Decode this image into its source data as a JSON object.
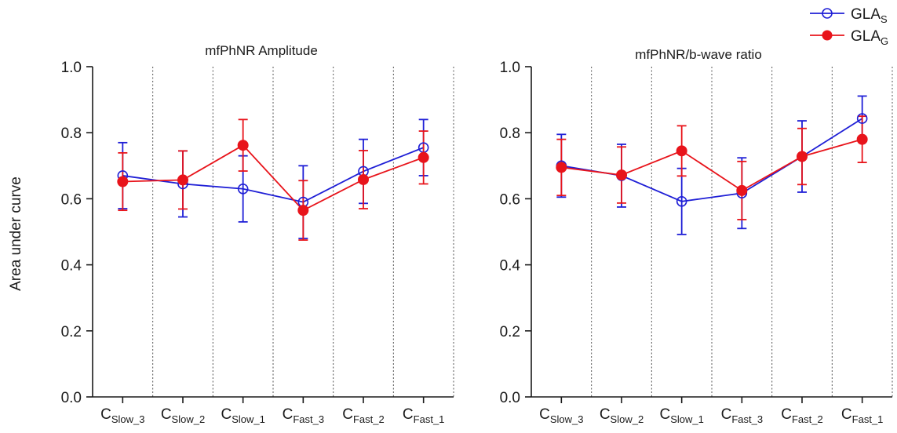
{
  "ylabel": "Area under curve",
  "colors": {
    "GLA_S": "#1f1fd6",
    "GLA_G": "#e8141b",
    "axis": "#1a1a1a",
    "divider": "#555555"
  },
  "legend": {
    "placement": "top-right",
    "items": [
      {
        "name": "GLA",
        "sub": "S",
        "marker": "open-circle",
        "color_key": "GLA_S"
      },
      {
        "name": "GLA",
        "sub": "G",
        "marker": "filled-circle",
        "color_key": "GLA_G"
      }
    ]
  },
  "chart_data": [
    {
      "type": "line",
      "title": "mfPhNR Amplitude",
      "ylabel": "Area under curve",
      "ylim": [
        0,
        1.0
      ],
      "yticks": [
        0.0,
        0.2,
        0.4,
        0.6,
        0.8,
        1.0
      ],
      "ytick_labels": [
        "0.0",
        "0.2",
        "0.4",
        "0.6",
        "0.8",
        "1.0"
      ],
      "categories": [
        {
          "base": "C",
          "sub": "Slow_3"
        },
        {
          "base": "C",
          "sub": "Slow_2"
        },
        {
          "base": "C",
          "sub": "Slow_1"
        },
        {
          "base": "C",
          "sub": "Fast_3"
        },
        {
          "base": "C",
          "sub": "Fast_2"
        },
        {
          "base": "C",
          "sub": "Fast_1"
        }
      ],
      "grid": "vertical dotted dividers between categories",
      "series": [
        {
          "name": "GLA_S",
          "color_key": "GLA_S",
          "marker": "open-circle",
          "values": [
            0.67,
            0.645,
            0.63,
            0.59,
            0.683,
            0.755
          ],
          "err": [
            0.1,
            0.1,
            0.1,
            0.11,
            0.097,
            0.085
          ]
        },
        {
          "name": "GLA_G",
          "color_key": "GLA_G",
          "marker": "filled-circle",
          "values": [
            0.652,
            0.657,
            0.762,
            0.565,
            0.658,
            0.725
          ],
          "err": [
            0.087,
            0.088,
            0.078,
            0.09,
            0.088,
            0.08
          ]
        }
      ]
    },
    {
      "type": "line",
      "title": "mfPhNR/b-wave ratio",
      "ylabel": "",
      "ylim": [
        0,
        1.0
      ],
      "yticks": [
        0.0,
        0.2,
        0.4,
        0.6,
        0.8,
        1.0
      ],
      "ytick_labels": [
        "0.0",
        "0.2",
        "0.4",
        "0.6",
        "0.8",
        "1.0"
      ],
      "categories": [
        {
          "base": "C",
          "sub": "Slow_3"
        },
        {
          "base": "C",
          "sub": "Slow_2"
        },
        {
          "base": "C",
          "sub": "Slow_1"
        },
        {
          "base": "C",
          "sub": "Fast_3"
        },
        {
          "base": "C",
          "sub": "Fast_2"
        },
        {
          "base": "C",
          "sub": "Fast_1"
        }
      ],
      "grid": "vertical dotted dividers between categories",
      "series": [
        {
          "name": "GLA_S",
          "color_key": "GLA_S",
          "marker": "open-circle",
          "values": [
            0.7,
            0.67,
            0.592,
            0.617,
            0.728,
            0.843
          ],
          "err": [
            0.095,
            0.095,
            0.1,
            0.107,
            0.108,
            0.068
          ]
        },
        {
          "name": "GLA_G",
          "color_key": "GLA_G",
          "marker": "filled-circle",
          "values": [
            0.695,
            0.672,
            0.745,
            0.625,
            0.728,
            0.78
          ],
          "err": [
            0.085,
            0.085,
            0.076,
            0.088,
            0.085,
            0.07
          ]
        }
      ]
    }
  ]
}
